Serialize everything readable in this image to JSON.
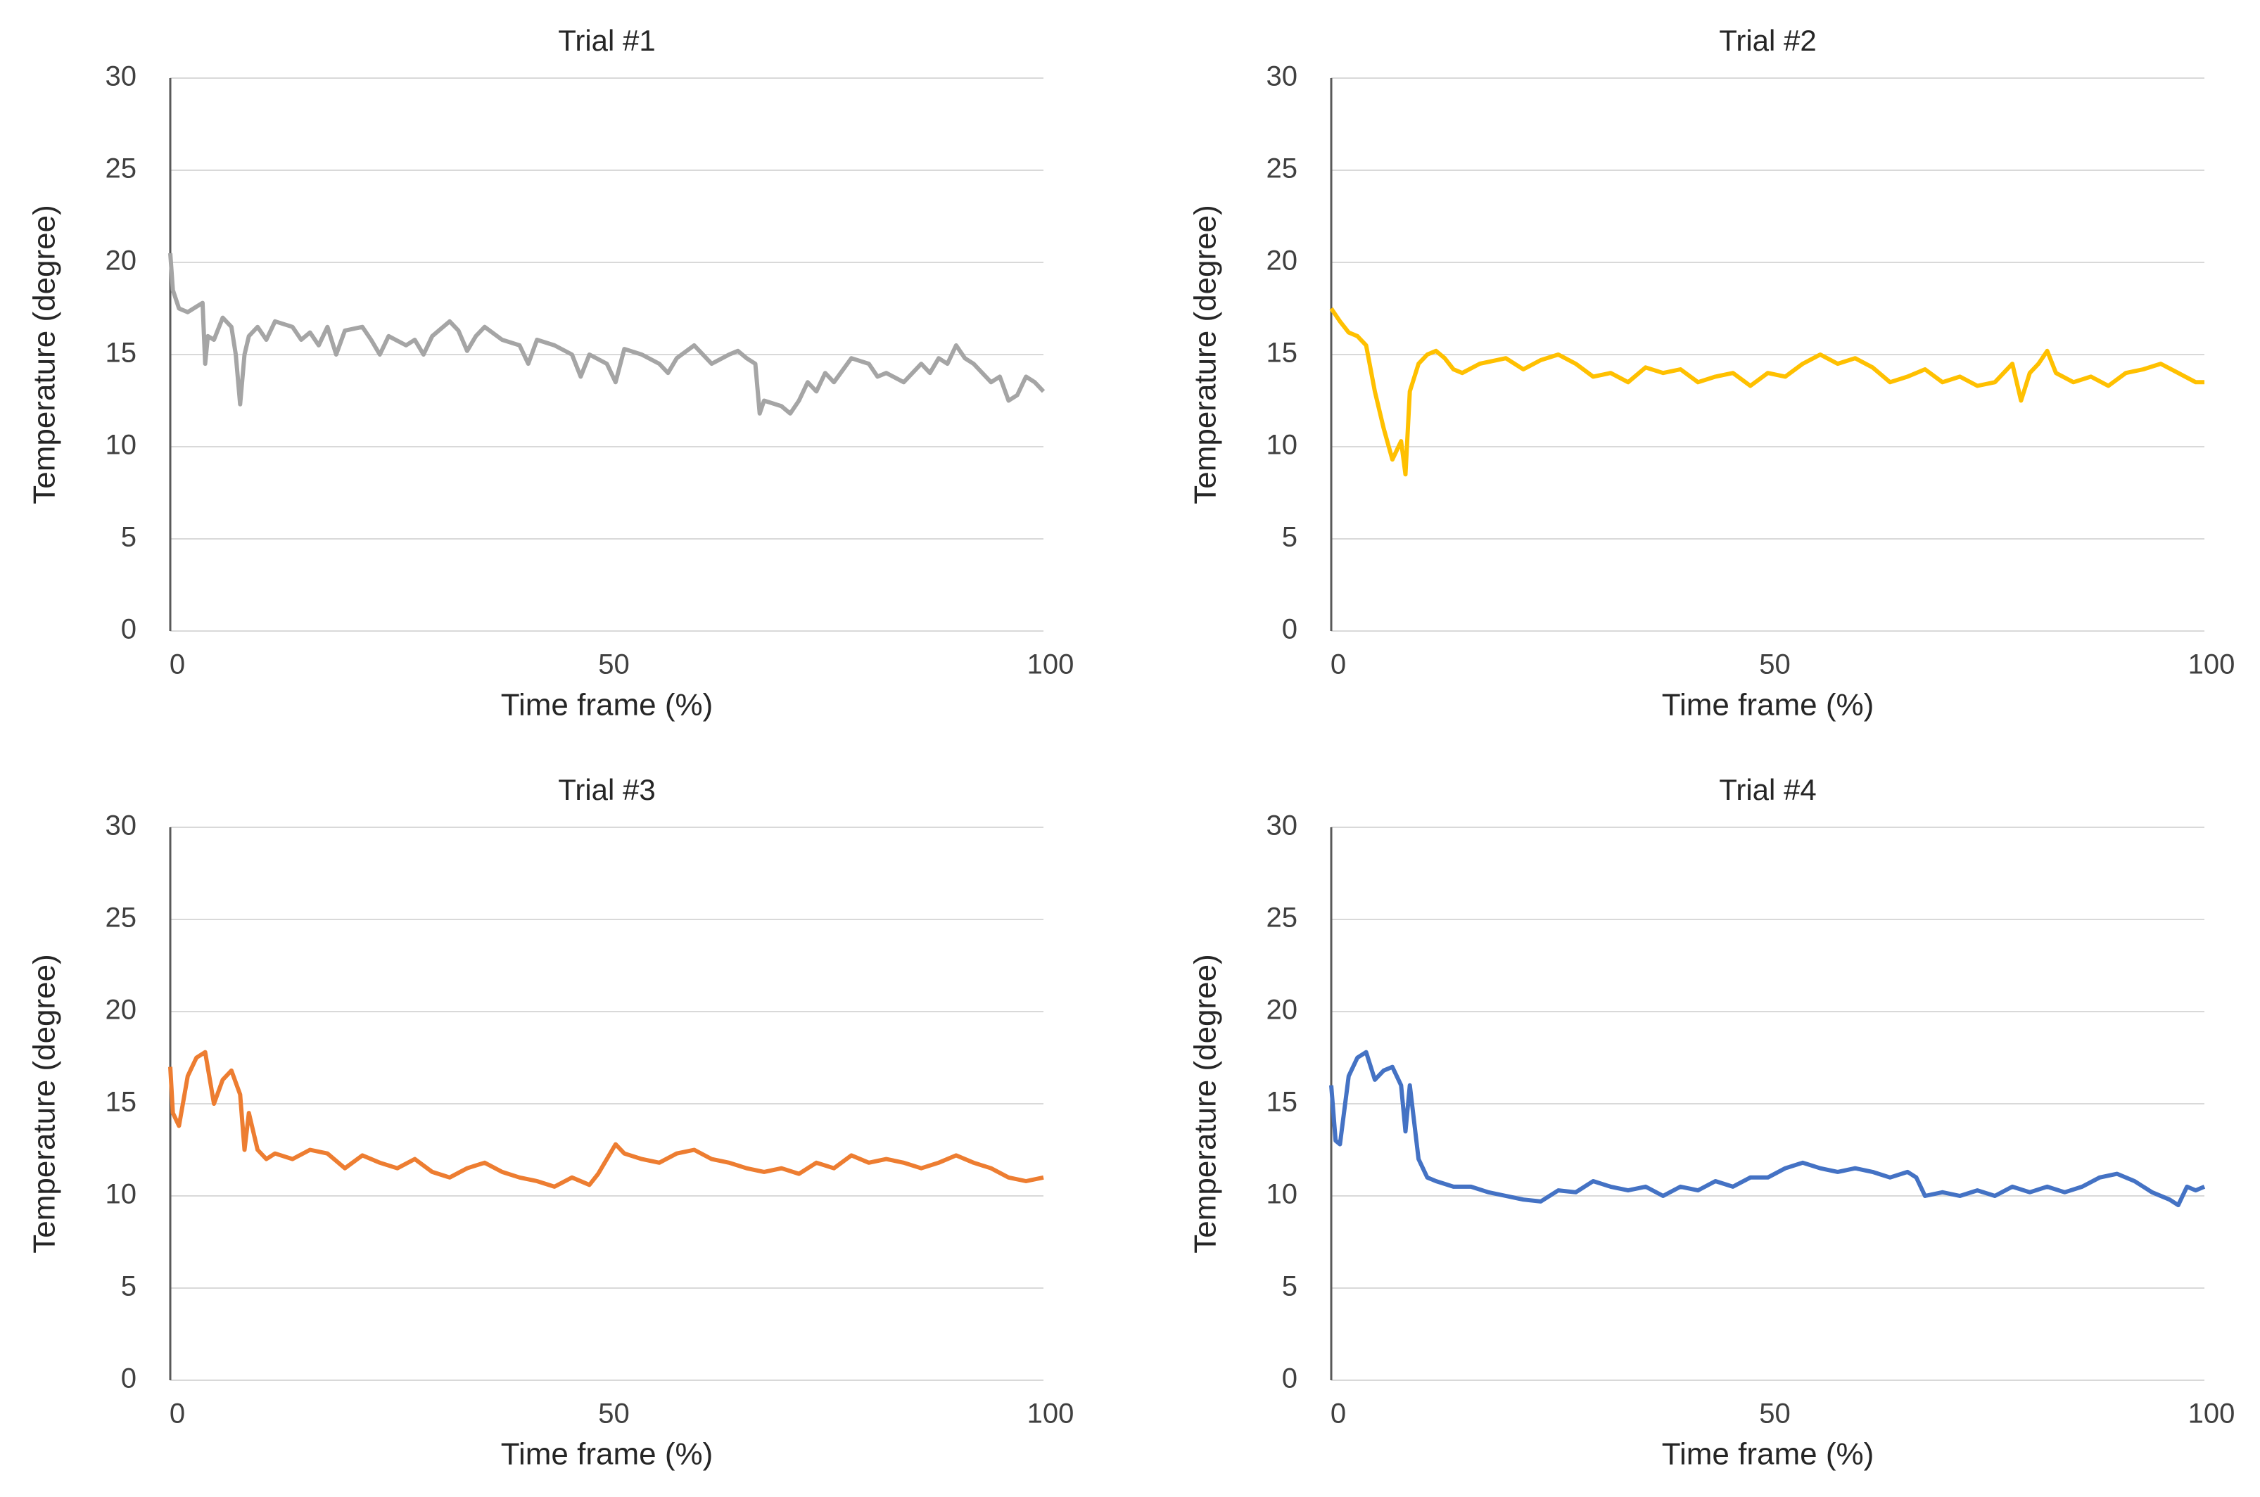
{
  "chart_data": [
    {
      "type": "line",
      "title": "Trial #1",
      "xlabel": "Time frame (%)",
      "ylabel": "Temperature (degree)",
      "color": "#a5a5a5",
      "xlim": [
        0,
        100
      ],
      "xticks": [
        0,
        50,
        100
      ],
      "ylim": [
        0,
        30
      ],
      "yticks": [
        0,
        5,
        10,
        15,
        20,
        25,
        30
      ],
      "grid": true,
      "x": [
        0,
        0.3,
        1,
        2,
        3,
        3.7,
        4,
        4.3,
        5,
        6,
        7,
        7.5,
        8,
        8.5,
        9,
        10,
        11,
        12,
        14,
        15,
        16,
        17,
        18,
        19,
        20,
        22,
        23,
        24,
        25,
        27,
        28,
        29,
        30,
        32,
        33,
        34,
        35,
        36,
        38,
        40,
        41,
        42,
        44,
        46,
        47,
        48,
        50,
        51,
        52,
        54,
        56,
        57,
        58,
        60,
        62,
        64,
        65,
        66,
        67,
        67.5,
        68,
        70,
        71,
        72,
        73,
        74,
        75,
        76,
        78,
        80,
        81,
        82,
        84,
        86,
        87,
        88,
        89,
        90,
        91,
        92,
        93,
        94,
        95,
        96,
        97,
        98,
        99,
        100
      ],
      "values": [
        20.5,
        18.5,
        17.5,
        17.3,
        17.6,
        17.8,
        14.5,
        16,
        15.8,
        17,
        16.5,
        15,
        12.3,
        15,
        16,
        16.5,
        15.8,
        16.8,
        16.5,
        15.8,
        16.2,
        15.5,
        16.5,
        15,
        16.3,
        16.5,
        15.8,
        15,
        16,
        15.5,
        15.8,
        15,
        16,
        16.8,
        16.3,
        15.2,
        16,
        16.5,
        15.8,
        15.5,
        14.5,
        15.8,
        15.5,
        15,
        13.8,
        15,
        14.5,
        13.5,
        15.3,
        15,
        14.5,
        14,
        14.8,
        15.5,
        14.5,
        15,
        15.2,
        14.8,
        14.5,
        11.8,
        12.5,
        12.2,
        11.8,
        12.5,
        13.5,
        13,
        14,
        13.5,
        14.8,
        14.5,
        13.8,
        14,
        13.5,
        14.5,
        14,
        14.8,
        14.5,
        15.5,
        14.8,
        14.5,
        14,
        13.5,
        13.8,
        12.5,
        12.8,
        13.8,
        13.5,
        13
      ]
    },
    {
      "type": "line",
      "title": "Trial #2",
      "xlabel": "Time frame (%)",
      "ylabel": "Temperature (degree)",
      "color": "#ffc000",
      "xlim": [
        0,
        100
      ],
      "xticks": [
        0,
        50,
        100
      ],
      "ylim": [
        0,
        30
      ],
      "yticks": [
        0,
        5,
        10,
        15,
        20,
        25,
        30
      ],
      "grid": true,
      "x": [
        0,
        1,
        2,
        3,
        4,
        5,
        6,
        7,
        7.5,
        8,
        8.5,
        9,
        10,
        11,
        12,
        13,
        14,
        15,
        17,
        20,
        22,
        24,
        26,
        28,
        30,
        32,
        34,
        36,
        38,
        40,
        42,
        44,
        46,
        48,
        50,
        52,
        54,
        56,
        58,
        60,
        62,
        64,
        66,
        68,
        70,
        72,
        74,
        76,
        78,
        79,
        80,
        81,
        82,
        83,
        85,
        87,
        89,
        91,
        93,
        95,
        97,
        99,
        100
      ],
      "values": [
        17.5,
        16.8,
        16.2,
        16,
        15.5,
        13,
        11,
        9.3,
        9.8,
        10.3,
        8.5,
        13,
        14.5,
        15,
        15.2,
        14.8,
        14.2,
        14,
        14.5,
        14.8,
        14.2,
        14.7,
        15,
        14.5,
        13.8,
        14,
        13.5,
        14.3,
        14,
        14.2,
        13.5,
        13.8,
        14,
        13.3,
        14,
        13.8,
        14.5,
        15,
        14.5,
        14.8,
        14.3,
        13.5,
        13.8,
        14.2,
        13.5,
        13.8,
        13.3,
        13.5,
        14.5,
        12.5,
        14,
        14.5,
        15.2,
        14,
        13.5,
        13.8,
        13.3,
        14,
        14.2,
        14.5,
        14,
        13.5,
        13.5
      ]
    },
    {
      "type": "line",
      "title": "Trial #3",
      "xlabel": "Time frame (%)",
      "ylabel": "Temperature (degree)",
      "color": "#ed7d31",
      "xlim": [
        0,
        100
      ],
      "xticks": [
        0,
        50,
        100
      ],
      "ylim": [
        0,
        30
      ],
      "yticks": [
        0,
        5,
        10,
        15,
        20,
        25,
        30
      ],
      "grid": true,
      "x": [
        0,
        0.3,
        1,
        2,
        3,
        4,
        5,
        6,
        7,
        8,
        8.5,
        9,
        10,
        11,
        12,
        14,
        16,
        18,
        20,
        22,
        24,
        26,
        28,
        30,
        32,
        34,
        36,
        38,
        40,
        42,
        44,
        46,
        48,
        49,
        50,
        51,
        52,
        54,
        56,
        58,
        60,
        62,
        64,
        66,
        68,
        70,
        72,
        74,
        76,
        78,
        80,
        82,
        84,
        86,
        88,
        90,
        92,
        94,
        96,
        98,
        100
      ],
      "values": [
        17,
        14.5,
        13.8,
        16.5,
        17.5,
        17.8,
        15,
        16.3,
        16.8,
        15.5,
        12.5,
        14.5,
        12.5,
        12,
        12.3,
        12,
        12.5,
        12.3,
        11.5,
        12.2,
        11.8,
        11.5,
        12,
        11.3,
        11,
        11.5,
        11.8,
        11.3,
        11,
        10.8,
        10.5,
        11,
        10.6,
        11.2,
        12,
        12.8,
        12.3,
        12,
        11.8,
        12.3,
        12.5,
        12,
        11.8,
        11.5,
        11.3,
        11.5,
        11.2,
        11.8,
        11.5,
        12.2,
        11.8,
        12,
        11.8,
        11.5,
        11.8,
        12.2,
        11.8,
        11.5,
        11,
        10.8,
        11
      ]
    },
    {
      "type": "line",
      "title": "Trial #4",
      "xlabel": "Time frame (%)",
      "ylabel": "Temperature (degree)",
      "color": "#4472c4",
      "xlim": [
        0,
        100
      ],
      "xticks": [
        0,
        50,
        100
      ],
      "ylim": [
        0,
        30
      ],
      "yticks": [
        0,
        5,
        10,
        15,
        20,
        25,
        30
      ],
      "grid": true,
      "x": [
        0,
        0.5,
        1,
        2,
        3,
        4,
        5,
        6,
        7,
        8,
        8.5,
        9,
        10,
        11,
        12,
        14,
        16,
        18,
        20,
        22,
        24,
        26,
        28,
        30,
        32,
        34,
        36,
        38,
        40,
        42,
        44,
        46,
        48,
        50,
        52,
        54,
        56,
        58,
        60,
        62,
        64,
        66,
        67,
        68,
        70,
        72,
        74,
        76,
        78,
        80,
        82,
        84,
        86,
        88,
        90,
        92,
        94,
        96,
        97,
        98,
        99,
        100
      ],
      "values": [
        16,
        13,
        12.8,
        16.5,
        17.5,
        17.8,
        16.3,
        16.8,
        17,
        16,
        13.5,
        16,
        12,
        11,
        10.8,
        10.5,
        10.5,
        10.2,
        10,
        9.8,
        9.7,
        10.3,
        10.2,
        10.8,
        10.5,
        10.3,
        10.5,
        10,
        10.5,
        10.3,
        10.8,
        10.5,
        11,
        11,
        11.5,
        11.8,
        11.5,
        11.3,
        11.5,
        11.3,
        11,
        11.3,
        11,
        10,
        10.2,
        10,
        10.3,
        10,
        10.5,
        10.2,
        10.5,
        10.2,
        10.5,
        11,
        11.2,
        10.8,
        10.2,
        9.8,
        9.5,
        10.5,
        10.3,
        10.5
      ]
    }
  ]
}
